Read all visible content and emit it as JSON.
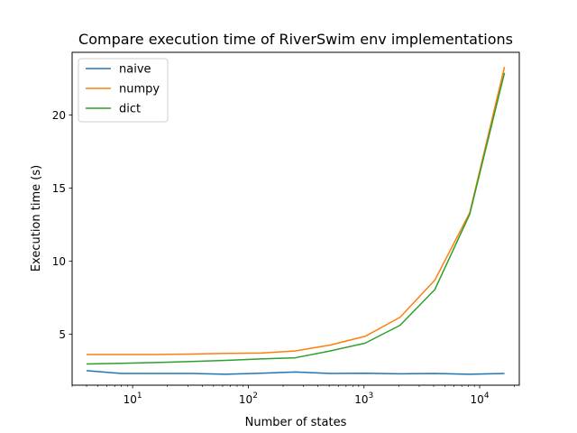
{
  "chart_data": {
    "type": "line",
    "title": "Compare execution time of RiverSwim env implementations",
    "xlabel": "Number of states",
    "ylabel": "Execution time (s)",
    "xscale": "log",
    "xlim": [
      3,
      22000
    ],
    "ylim": [
      1.5,
      24.3
    ],
    "xticks": [
      {
        "value": 10,
        "base": "10",
        "exp": "1"
      },
      {
        "value": 100,
        "base": "10",
        "exp": "2"
      },
      {
        "value": 1000,
        "base": "10",
        "exp": "3"
      },
      {
        "value": 10000,
        "base": "10",
        "exp": "4"
      }
    ],
    "yticks": [
      5,
      10,
      15,
      20
    ],
    "grid": false,
    "legend": "top-left",
    "x": [
      4,
      8,
      16,
      32,
      64,
      128,
      256,
      512,
      1024,
      2048,
      4096,
      8192,
      16384
    ],
    "series": [
      {
        "name": "naive",
        "color": "#1f77b4",
        "values": [
          2.5,
          2.3,
          2.3,
          2.3,
          2.25,
          2.32,
          2.4,
          2.3,
          2.32,
          2.28,
          2.3,
          2.25,
          2.3
        ]
      },
      {
        "name": "numpy",
        "color": "#ff7f0e",
        "values": [
          3.6,
          3.6,
          3.6,
          3.63,
          3.68,
          3.7,
          3.85,
          4.25,
          4.85,
          6.15,
          8.7,
          13.3,
          23.3
        ]
      },
      {
        "name": "dict",
        "color": "#2ca02c",
        "values": [
          2.95,
          3.0,
          3.05,
          3.12,
          3.2,
          3.3,
          3.38,
          3.85,
          4.38,
          5.6,
          8.05,
          13.2,
          22.9
        ]
      }
    ]
  }
}
